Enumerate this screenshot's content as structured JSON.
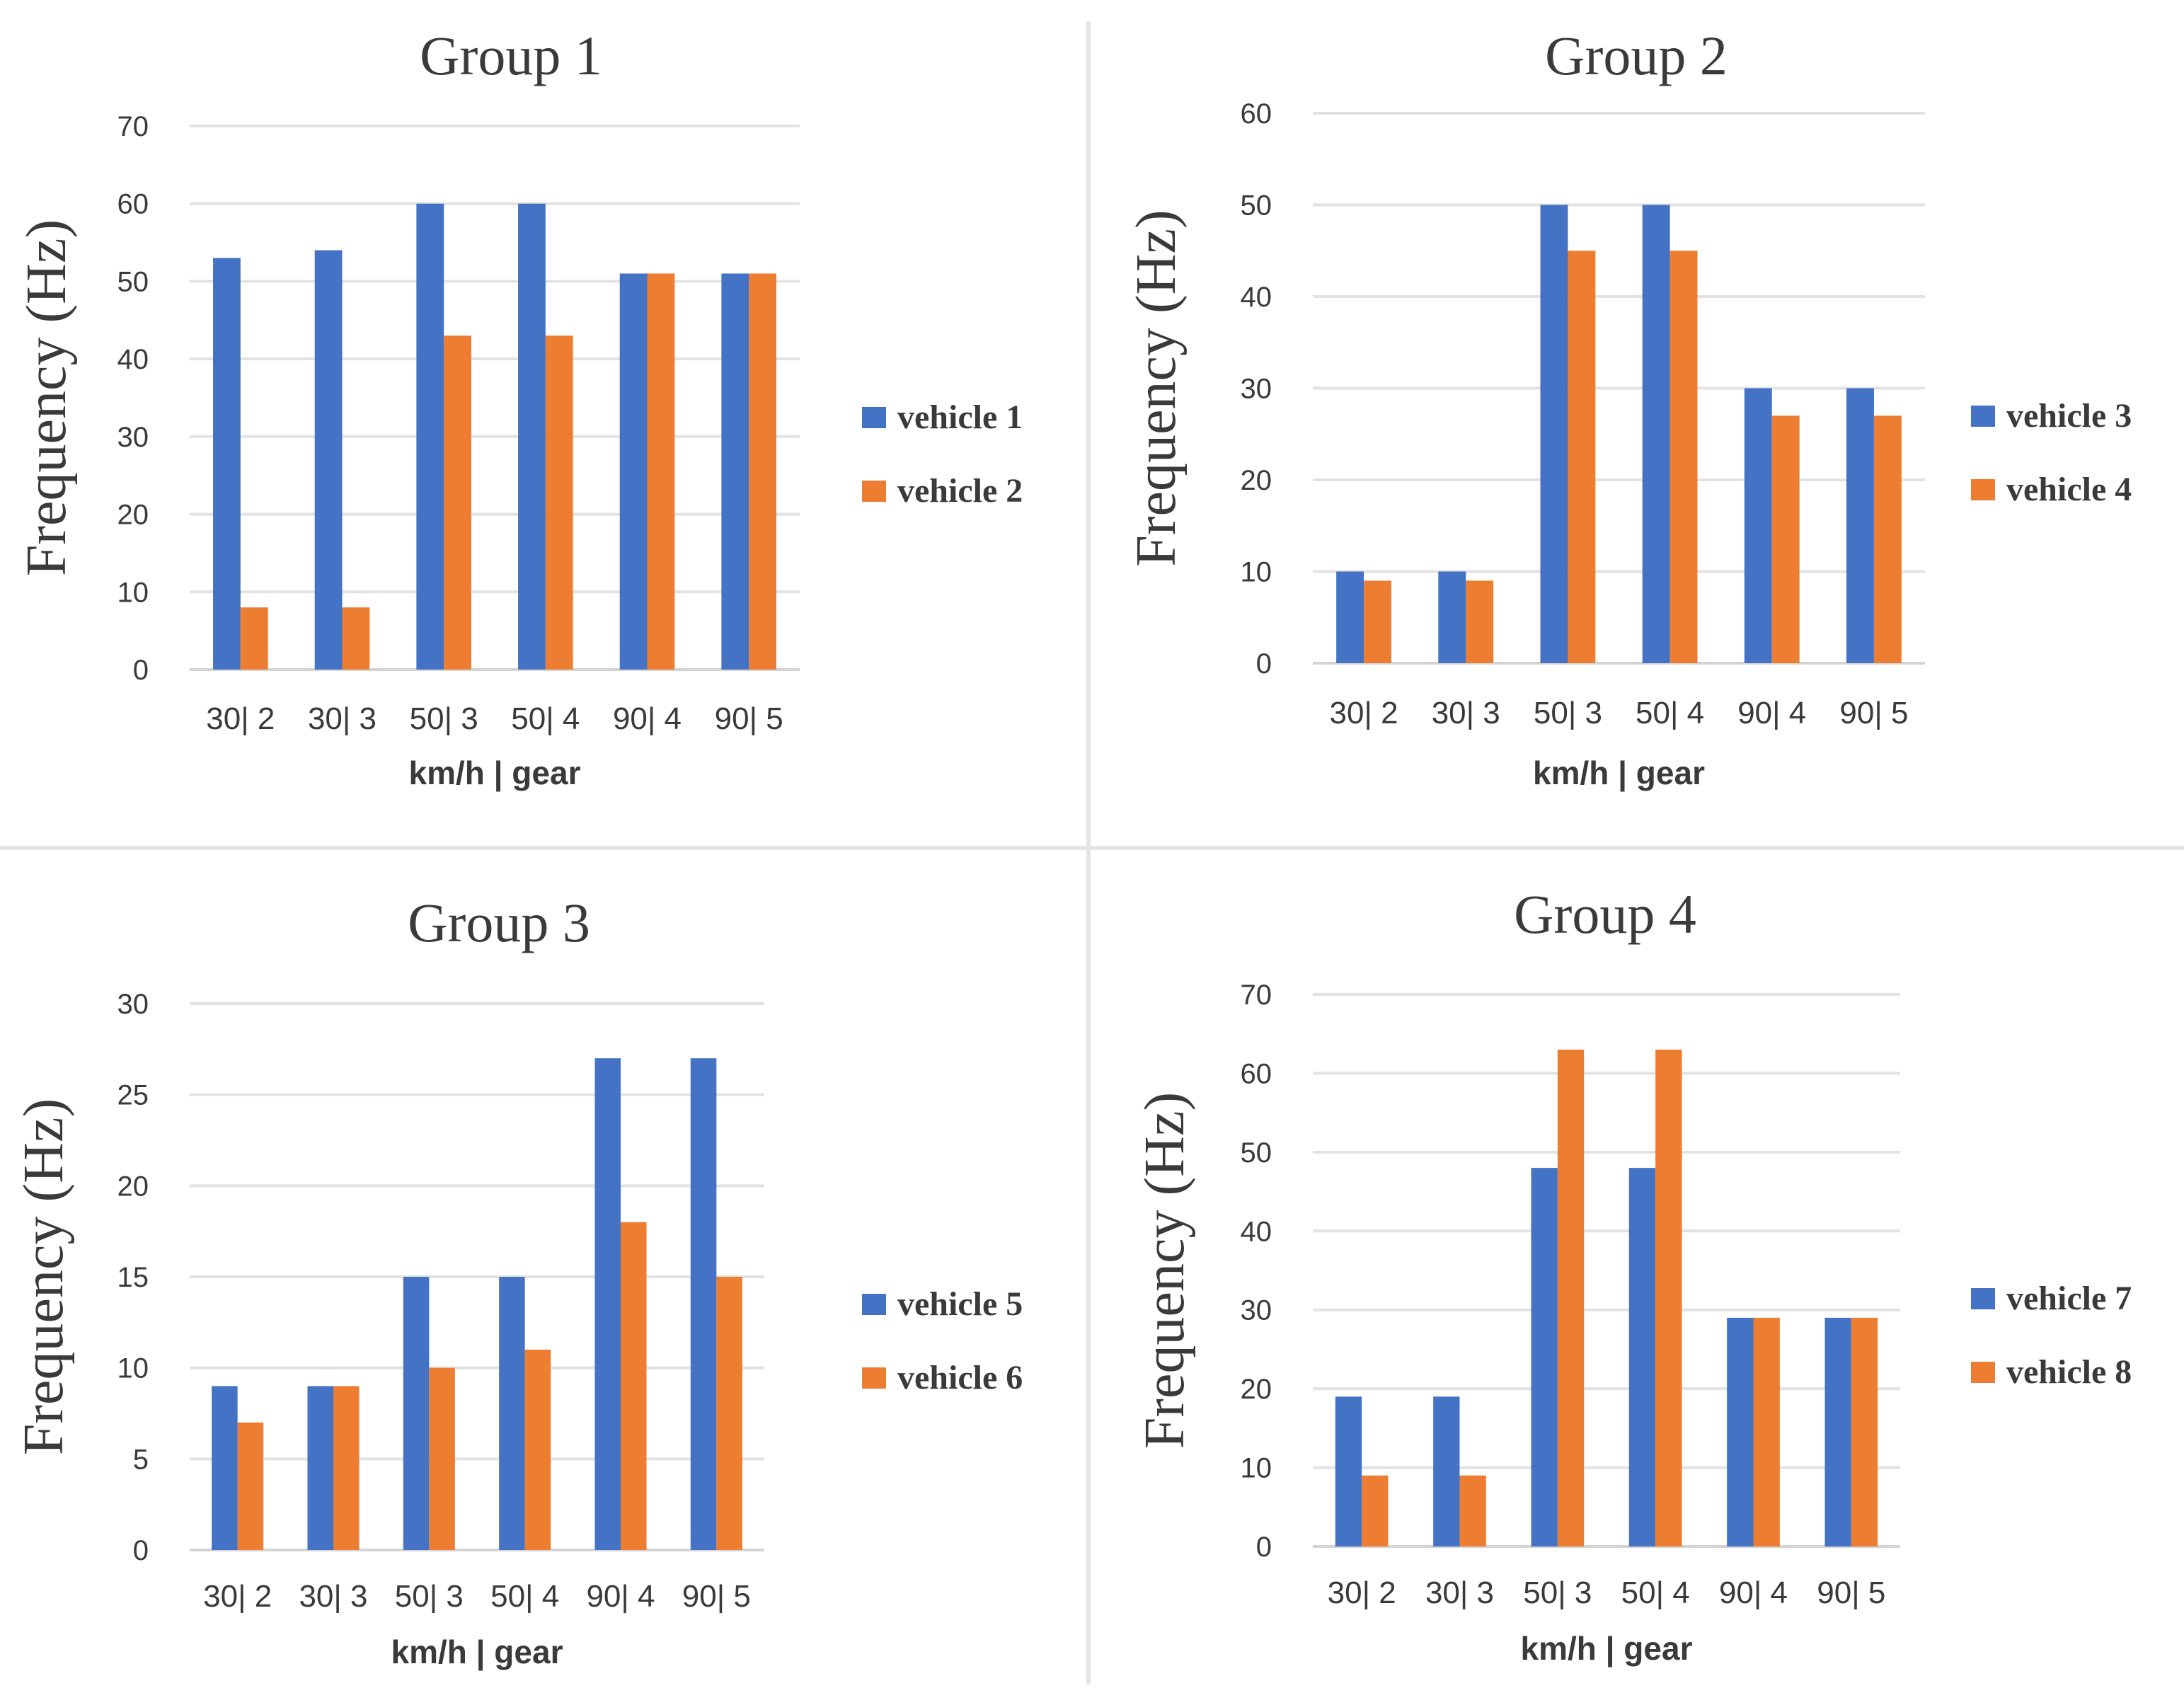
{
  "colors": {
    "series_a": "#4472c4",
    "series_b": "#ed7d31"
  },
  "chart_data": [
    {
      "type": "bar",
      "title": "Group 1",
      "ylabel": "Frequency (Hz)",
      "xlabel": "km/h | gear",
      "categories": [
        "30| 2",
        "30| 3",
        "50| 3",
        "50| 4",
        "90| 4",
        "90| 5"
      ],
      "ylim": [
        0,
        70
      ],
      "yticks": [
        0,
        10,
        20,
        30,
        40,
        50,
        60,
        70
      ],
      "grid": true,
      "legend_position": "right",
      "series": [
        {
          "name": "vehicle 1",
          "values": [
            53,
            54,
            60,
            60,
            51,
            51
          ]
        },
        {
          "name": "vehicle 2",
          "values": [
            8,
            8,
            43,
            43,
            51,
            51
          ]
        }
      ]
    },
    {
      "type": "bar",
      "title": "Group 2",
      "ylabel": "Frequency (Hz)",
      "xlabel": "km/h | gear",
      "categories": [
        "30| 2",
        "30| 3",
        "50| 3",
        "50| 4",
        "90| 4",
        "90| 5"
      ],
      "ylim": [
        0,
        60
      ],
      "yticks": [
        0,
        10,
        20,
        30,
        40,
        50,
        60
      ],
      "grid": true,
      "legend_position": "right",
      "series": [
        {
          "name": "vehicle 3",
          "values": [
            10,
            10,
            50,
            50,
            30,
            30
          ]
        },
        {
          "name": "vehicle 4",
          "values": [
            9,
            9,
            45,
            45,
            27,
            27
          ]
        }
      ]
    },
    {
      "type": "bar",
      "title": "Group 3",
      "ylabel": "Frequency (Hz)",
      "xlabel": "km/h | gear",
      "categories": [
        "30| 2",
        "30| 3",
        "50| 3",
        "50| 4",
        "90| 4",
        "90| 5"
      ],
      "ylim": [
        0,
        30
      ],
      "yticks": [
        0,
        5,
        10,
        15,
        20,
        25,
        30
      ],
      "grid": true,
      "legend_position": "right",
      "series": [
        {
          "name": "vehicle 5",
          "values": [
            9,
            9,
            15,
            15,
            27,
            27
          ]
        },
        {
          "name": "vehicle 6",
          "values": [
            7,
            9,
            10,
            11,
            18,
            15
          ]
        }
      ]
    },
    {
      "type": "bar",
      "title": "Group 4",
      "ylabel": "Frequency (Hz)",
      "xlabel": "km/h | gear",
      "categories": [
        "30| 2",
        "30| 3",
        "50| 3",
        "50| 4",
        "90| 4",
        "90| 5"
      ],
      "ylim": [
        0,
        70
      ],
      "yticks": [
        0,
        10,
        20,
        30,
        40,
        50,
        60,
        70
      ],
      "grid": true,
      "legend_position": "right",
      "series": [
        {
          "name": "vehicle 7",
          "values": [
            19,
            19,
            48,
            48,
            29,
            29
          ]
        },
        {
          "name": "vehicle 8",
          "values": [
            9,
            9,
            63,
            63,
            29,
            29
          ]
        }
      ]
    }
  ]
}
